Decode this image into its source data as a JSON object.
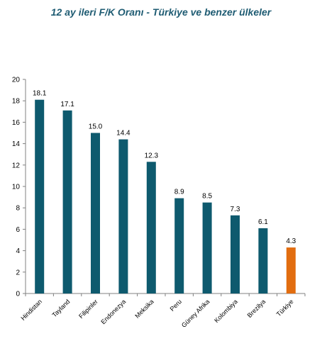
{
  "chart_data": {
    "type": "bar",
    "title": "12 ay ileri F/K Oranı -  Türkiye ve benzer ülkeler",
    "xlabel": "",
    "ylabel": "",
    "ylim": [
      0,
      20
    ],
    "yticks": [
      0,
      2,
      4,
      6,
      8,
      10,
      12,
      14,
      16,
      18,
      20
    ],
    "categories": [
      "Hindistan",
      "Tayland",
      "Filipinler",
      "Endonezya",
      "Meksika",
      "Peru",
      "Güney Afrika",
      "Kolombiya",
      "Brezilya",
      "Türkiye"
    ],
    "values": [
      18.1,
      17.1,
      15.0,
      14.4,
      12.3,
      8.9,
      8.5,
      7.3,
      6.1,
      4.3
    ],
    "data_labels": [
      "18.1",
      "17.1",
      "15.0",
      "14.4",
      "12.3",
      "8.9",
      "8.5",
      "7.3",
      "6.1",
      "4.3"
    ],
    "colors": {
      "default": "#0e5a6e",
      "highlight": "#e26d10"
    },
    "highlight_category": "Türkiye",
    "grid": false,
    "legend": "none"
  }
}
